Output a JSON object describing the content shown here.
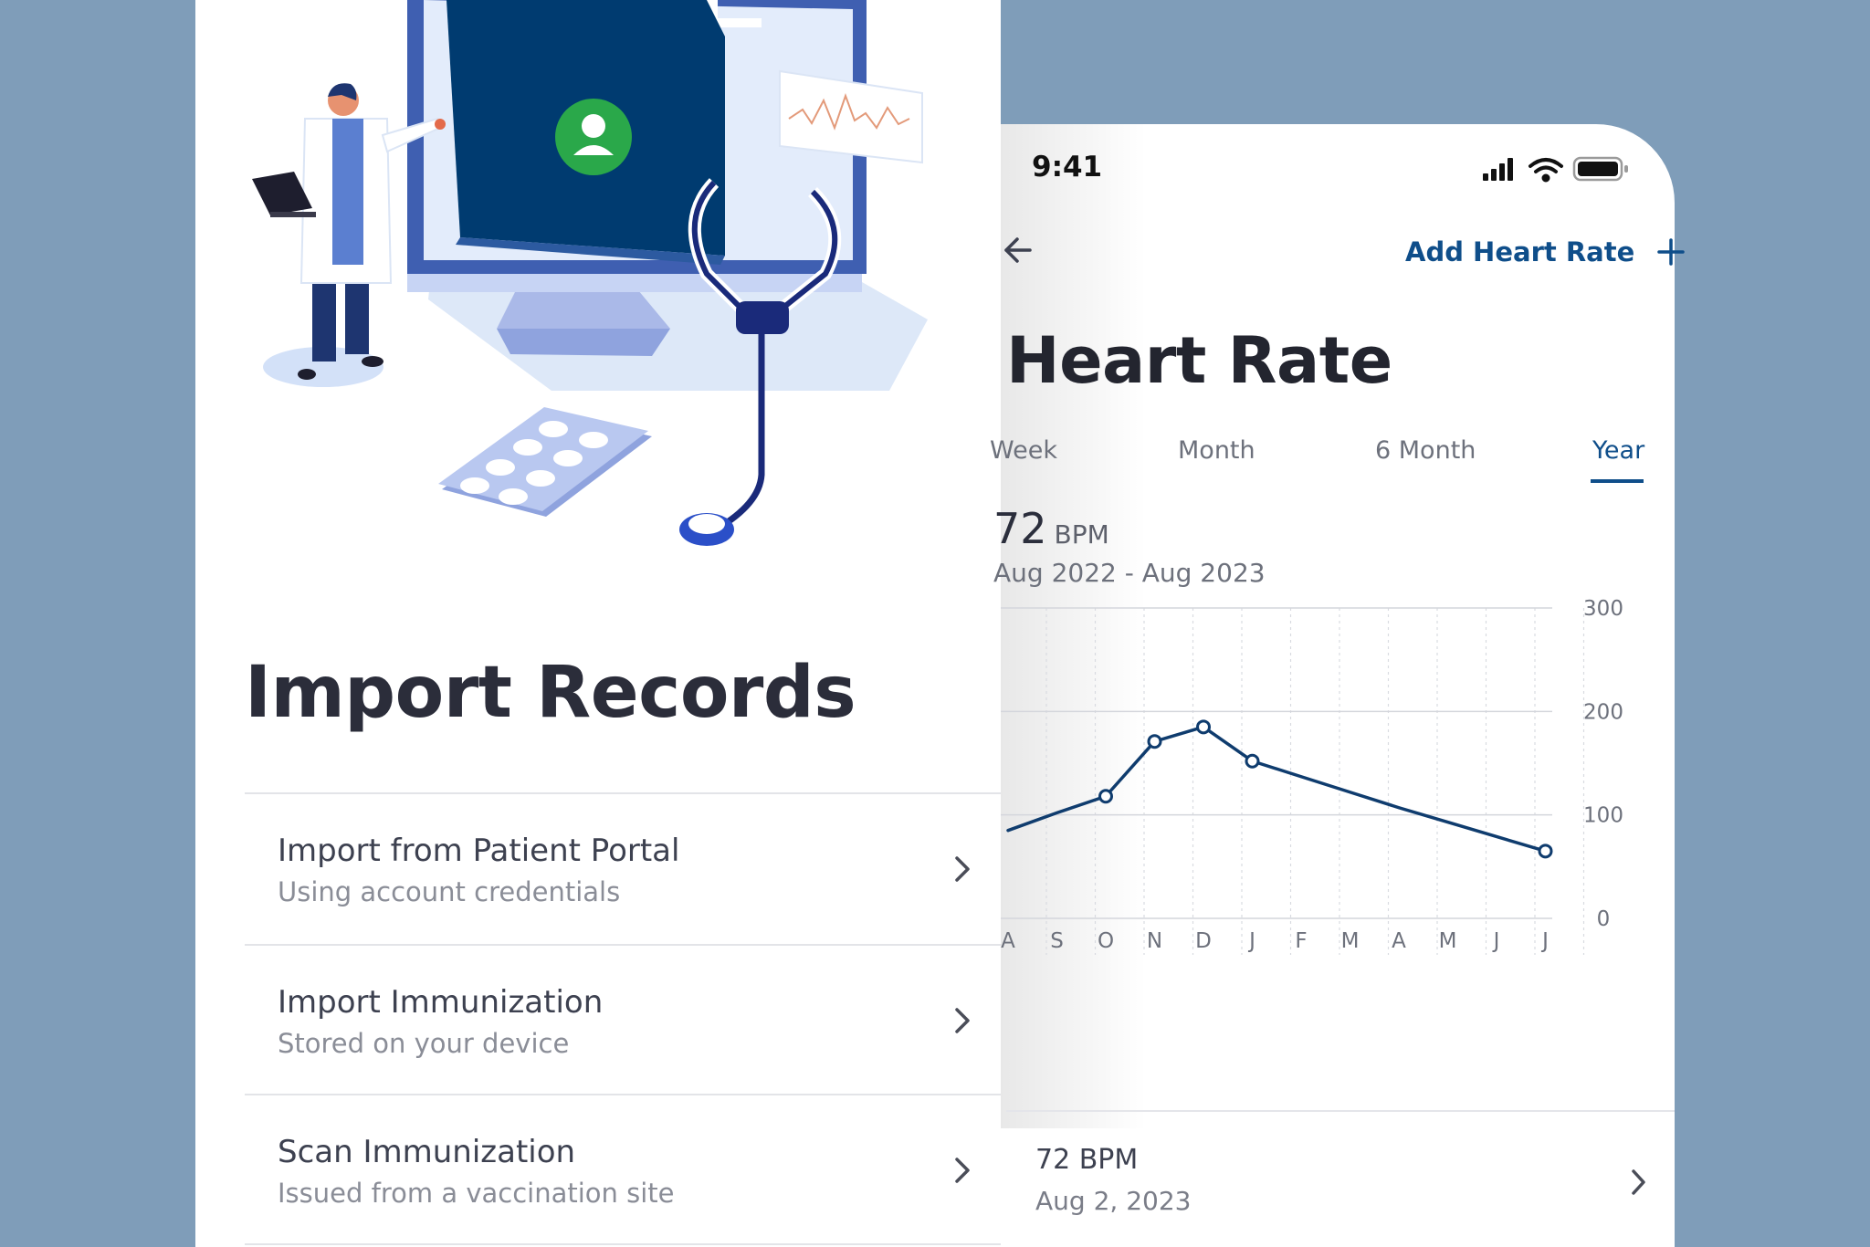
{
  "colors": {
    "background": "#7f9db9",
    "card": "#ffffff",
    "accent": "#0f4e8a",
    "chart_line": "#0f3c6e",
    "illustration_dark": "#003b70",
    "illustration_green": "#2aa84a"
  },
  "import_records": {
    "title": "Import Records",
    "items": [
      {
        "title": "Import from Patient Portal",
        "subtitle": "Using account credentials",
        "icon": "chevron-right-icon"
      },
      {
        "title": "Import Immunization",
        "subtitle": "Stored on your device",
        "icon": "chevron-right-icon"
      },
      {
        "title": "Scan Immunization",
        "subtitle": "Issued from a vaccination site",
        "icon": "chevron-right-icon"
      }
    ]
  },
  "phone": {
    "status_bar": {
      "time": "9:41",
      "icons": [
        "signal-icon",
        "wifi-icon",
        "battery-icon"
      ]
    },
    "nav": {
      "back_icon": "arrow-left-icon",
      "action_label": "Add Heart Rate",
      "action_icon": "plus-icon"
    },
    "title": "Heart Rate",
    "tabs": [
      {
        "label": "Week",
        "active": false
      },
      {
        "label": "Month",
        "active": false
      },
      {
        "label": "6 Month",
        "active": false
      },
      {
        "label": "Year",
        "active": true
      }
    ],
    "summary": {
      "value": "72",
      "unit": "BPM",
      "range": "Aug 2022 - Aug 2023"
    },
    "latest": {
      "value": "72 BPM",
      "date": "Aug 2, 2023",
      "icon": "chevron-right-icon"
    }
  },
  "chart_data": {
    "type": "line",
    "categories": [
      "A",
      "S",
      "O",
      "N",
      "D",
      "J",
      "F",
      "M",
      "A",
      "M",
      "J",
      "J"
    ],
    "ylim": [
      0,
      300
    ],
    "yticks": [
      0,
      100,
      200,
      300
    ],
    "grid": true,
    "series": [
      {
        "values": [
          85,
          102,
          118,
          171,
          185,
          152,
          137,
          122,
          107,
          93,
          79,
          65
        ],
        "markers": [
          false,
          false,
          true,
          true,
          true,
          true,
          false,
          false,
          false,
          false,
          false,
          true
        ]
      }
    ]
  }
}
